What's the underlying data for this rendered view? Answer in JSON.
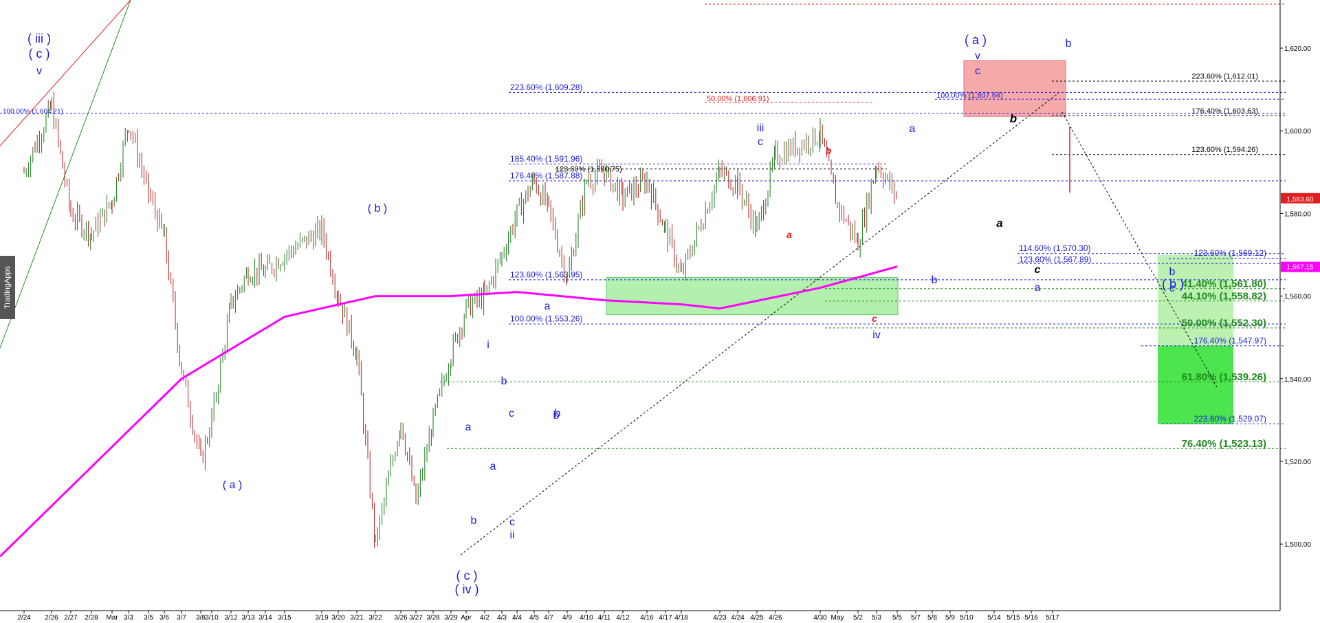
{
  "watermark": "TradingApps",
  "colors": {
    "blue": "#1a1adc",
    "red": "#e0201e",
    "green": "#1e8c1e",
    "magenta": "#ff00ff",
    "black": "#000000"
  },
  "chart_data": {
    "type": "line",
    "title": "",
    "xlabel": "",
    "ylabel": "",
    "ylim": [
      1482,
      1630
    ],
    "grid": false,
    "price_axis_ticks": [
      "1,620.00",
      "1,600.00",
      "1,580.00",
      "1,560.00",
      "1,540.00",
      "1,520.00",
      "1,500.00"
    ],
    "date_ticks": [
      "2/24",
      "2/26",
      "2/27",
      "2/28",
      "Mar",
      "3/3",
      "3/5",
      "3/6",
      "3/7",
      "3/8",
      "3/10",
      "3/12",
      "3/13",
      "3/14",
      "3/15",
      "3/19",
      "3/20",
      "3/21",
      "3/22",
      "3/26",
      "3/27",
      "3/28",
      "3/29",
      "Apr",
      "4/2",
      "4/3",
      "4/4",
      "4/5",
      "4/7",
      "4/9",
      "4/10",
      "4/11",
      "4/12",
      "4/16",
      "4/17",
      "4/18",
      "4/23",
      "4/24",
      "4/25",
      "4/26",
      "4/30",
      "May",
      "5/2",
      "5/3",
      "5/5",
      "5/7",
      "5/8",
      "5/9",
      "5/10",
      "5/14",
      "5/15",
      "5/16",
      "5/17"
    ],
    "price_series": {
      "name": "",
      "x": [
        "2/24",
        "2/26",
        "2/27",
        "2/28",
        "Mar",
        "3/3",
        "3/5",
        "3/6",
        "3/7",
        "3/8",
        "3/10",
        "3/12",
        "3/13",
        "3/14",
        "3/15",
        "3/19",
        "3/20",
        "3/21",
        "3/22",
        "3/26",
        "3/27",
        "3/28",
        "3/29",
        "Apr",
        "4/2",
        "4/3",
        "4/4",
        "4/5",
        "4/7",
        "4/9",
        "4/10",
        "4/11",
        "4/12",
        "4/16",
        "4/17",
        "4/18",
        "4/23",
        "4/24",
        "4/25",
        "4/26",
        "4/30",
        "May",
        "5/2",
        "5/3",
        "5/5"
      ],
      "y": [
        1590,
        1606,
        1580,
        1575,
        1583,
        1602,
        1585,
        1574,
        1542,
        1520,
        1530,
        1558,
        1566,
        1566,
        1570,
        1576,
        1560,
        1546,
        1500,
        1530,
        1510,
        1530,
        1546,
        1557,
        1560,
        1570,
        1580,
        1588,
        1581,
        1564,
        1588,
        1590,
        1584,
        1588,
        1576,
        1565,
        1590,
        1587,
        1576,
        1594,
        1599,
        1582,
        1573,
        1592,
        1584
      ]
    },
    "moving_average": {
      "name": "",
      "color": "#ff00ff",
      "x": [
        "2/24",
        "3/7",
        "3/15",
        "3/22",
        "3/29",
        "4/4",
        "4/11",
        "4/18",
        "4/23",
        "4/30",
        "5/5"
      ],
      "y": [
        1497,
        1540,
        1555,
        1560,
        1560,
        1561,
        1559,
        1558,
        1557,
        1562,
        1567.15
      ]
    },
    "last_price": "1,583.60",
    "ma_price": "1,567.15",
    "fib_levels": [
      {
        "text": "100.00% (1,604.21)",
        "price": 1604.21,
        "color": "#1a1adc"
      },
      {
        "text": "223.60% (1,609.28)",
        "price": 1609.28,
        "color": "#1a1adc"
      },
      {
        "text": "50.00% (1,606.91)",
        "price": 1606.91,
        "color": "#e0201e"
      },
      {
        "text": "185.40% (1,591.96)",
        "price": 1591.96,
        "color": "#1a1adc"
      },
      {
        "text": "123.60% (1,590.75)",
        "price": 1590.75,
        "color": "#000000"
      },
      {
        "text": "176.40% (1,587.88)",
        "price": 1587.88,
        "color": "#1a1adc"
      },
      {
        "text": "123.60% (1,563.95)",
        "price": 1563.95,
        "color": "#1a1adc"
      },
      {
        "text": "100.00% (1,553.26)",
        "price": 1553.26,
        "color": "#1a1adc"
      },
      {
        "text": "100.00% (1,607.64)",
        "price": 1607.64,
        "color": "#1a1adc"
      },
      {
        "text": "223.60% (1,612.01)",
        "price": 1612.01,
        "color": "#000000"
      },
      {
        "text": "176.40% (1,603.63)",
        "price": 1603.63,
        "color": "#000000"
      },
      {
        "text": "123.60% (1,594.26)",
        "price": 1594.26,
        "color": "#000000"
      },
      {
        "text": "114.60% (1,570.30)",
        "price": 1570.3,
        "color": "#1a1adc"
      },
      {
        "text": "123.60% (1,567.89)",
        "price": 1567.89,
        "color": "#1a1adc"
      },
      {
        "text": "123.60% (1,569.12)",
        "price": 1569.12,
        "color": "#1a1adc"
      },
      {
        "text": "41.40% (1,561.80)",
        "price": 1561.8,
        "color": "#1e8c1e"
      },
      {
        "text": "44.10% (1,558.82)",
        "price": 1558.82,
        "color": "#1e8c1e"
      },
      {
        "text": "50.00% (1,552.30)",
        "price": 1552.3,
        "color": "#1e8c1e"
      },
      {
        "text": "176.40% (1,547.97)",
        "price": 1547.97,
        "color": "#1a1adc"
      },
      {
        "text": "61.80% (1,539.26)",
        "price": 1539.26,
        "color": "#1e8c1e"
      },
      {
        "text": "223.60% (1,529.07)",
        "price": 1529.07,
        "color": "#1a1adc"
      },
      {
        "text": "76.40% (1,523.13)",
        "price": 1523.13,
        "color": "#1e8c1e"
      }
    ],
    "wave_labels": [
      "( iii )",
      "( c )",
      "v",
      "( a )",
      "( b )",
      "( c )",
      "( iv )",
      "a",
      "b",
      "a",
      "b",
      "c",
      "i",
      "b",
      "c",
      "ii",
      "a",
      "b",
      "iii",
      "c",
      "a",
      "b",
      "c",
      "iv",
      "a",
      "b",
      "( a )",
      "v",
      "c",
      "b",
      "a",
      "b",
      "c",
      "a",
      "b",
      "c",
      "( b )"
    ]
  }
}
